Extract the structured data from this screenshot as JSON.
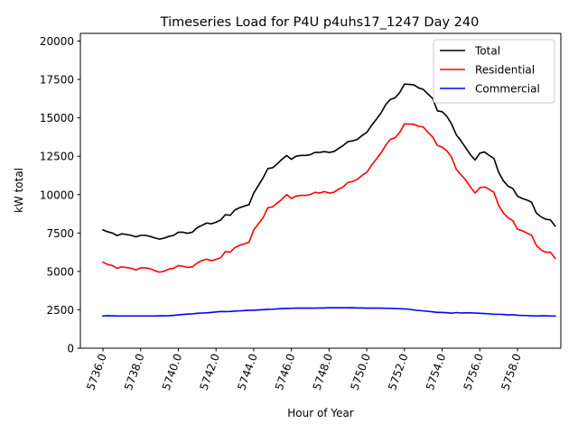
{
  "chart_data": {
    "type": "line",
    "title": "Timeseries Load for P4U p4uhs17_1247  Day 240",
    "xlabel": "Hour of Year",
    "ylabel": "kW total",
    "xlim": [
      5734.8,
      5760.3
    ],
    "ylim": [
      0,
      20500
    ],
    "xticks": [
      5736,
      5738,
      5740,
      5742,
      5744,
      5746,
      5748,
      5750,
      5752,
      5754,
      5756,
      5758
    ],
    "xtick_labels": [
      "5736.0",
      "5738.0",
      "5740.0",
      "5742.0",
      "5744.0",
      "5746.0",
      "5748.0",
      "5750.0",
      "5752.0",
      "5754.0",
      "5756.0",
      "5758.0"
    ],
    "yticks": [
      0,
      2500,
      5000,
      7500,
      10000,
      12500,
      15000,
      17500,
      20000
    ],
    "ytick_labels": [
      "0",
      "2500",
      "5000",
      "7500",
      "10000",
      "12500",
      "15000",
      "17500",
      "20000"
    ],
    "legend_position": "top-right",
    "x_start": 5736.0,
    "x_step": 0.25,
    "series": [
      {
        "name": "Total",
        "color": "#000000",
        "values": [
          7700,
          7580,
          7500,
          7330,
          7450,
          7400,
          7350,
          7250,
          7350,
          7350,
          7280,
          7180,
          7100,
          7170,
          7280,
          7350,
          7550,
          7550,
          7480,
          7560,
          7850,
          8000,
          8150,
          8100,
          8200,
          8350,
          8700,
          8650,
          9000,
          9150,
          9250,
          9350,
          10100,
          10600,
          11100,
          11700,
          11750,
          12000,
          12300,
          12550,
          12300,
          12500,
          12550,
          12550,
          12600,
          12750,
          12750,
          12800,
          12750,
          12800,
          13000,
          13200,
          13450,
          13500,
          13600,
          13850,
          14050,
          14500,
          14900,
          15300,
          15850,
          16200,
          16300,
          16650,
          17200,
          17180,
          17150,
          16950,
          16850,
          16550,
          16250,
          15450,
          15400,
          15100,
          14600,
          13900,
          13500,
          13050,
          12600,
          12250,
          12700,
          12780,
          12550,
          12350,
          11450,
          10900,
          10550,
          10400,
          9900,
          9750,
          9650,
          9500,
          8800,
          8550,
          8400,
          8350,
          7950
        ]
      },
      {
        "name": "Residential",
        "color": "#ff0000",
        "values": [
          5600,
          5450,
          5380,
          5200,
          5300,
          5250,
          5200,
          5100,
          5230,
          5230,
          5180,
          5050,
          4950,
          5020,
          5150,
          5200,
          5380,
          5330,
          5260,
          5300,
          5550,
          5700,
          5800,
          5700,
          5780,
          5900,
          6300,
          6250,
          6550,
          6700,
          6800,
          6900,
          7700,
          8100,
          8500,
          9150,
          9200,
          9450,
          9700,
          10000,
          9750,
          9900,
          9950,
          9950,
          10000,
          10150,
          10100,
          10200,
          10100,
          10150,
          10350,
          10500,
          10800,
          10850,
          11000,
          11250,
          11450,
          11900,
          12300,
          12700,
          13200,
          13600,
          13700,
          14050,
          14600,
          14600,
          14580,
          14450,
          14400,
          14050,
          13750,
          13200,
          13100,
          12850,
          12450,
          11650,
          11300,
          10950,
          10500,
          10100,
          10450,
          10500,
          10350,
          10150,
          9300,
          8800,
          8500,
          8300,
          7750,
          7650,
          7500,
          7350,
          6700,
          6400,
          6250,
          6250,
          5850
        ]
      },
      {
        "name": "Commercial",
        "color": "#0000ff",
        "values": [
          2100,
          2120,
          2110,
          2100,
          2100,
          2100,
          2100,
          2100,
          2100,
          2100,
          2100,
          2100,
          2110,
          2110,
          2120,
          2140,
          2170,
          2200,
          2220,
          2240,
          2270,
          2290,
          2300,
          2330,
          2360,
          2390,
          2380,
          2390,
          2420,
          2430,
          2450,
          2470,
          2470,
          2490,
          2510,
          2530,
          2540,
          2560,
          2580,
          2590,
          2600,
          2610,
          2610,
          2610,
          2610,
          2610,
          2620,
          2620,
          2630,
          2630,
          2630,
          2630,
          2630,
          2640,
          2620,
          2620,
          2610,
          2610,
          2610,
          2610,
          2600,
          2600,
          2580,
          2570,
          2560,
          2540,
          2490,
          2460,
          2430,
          2400,
          2370,
          2330,
          2330,
          2310,
          2280,
          2320,
          2290,
          2300,
          2300,
          2290,
          2270,
          2260,
          2240,
          2210,
          2210,
          2200,
          2170,
          2180,
          2150,
          2130,
          2130,
          2110,
          2100,
          2110,
          2110,
          2100,
          2090
        ]
      }
    ]
  }
}
